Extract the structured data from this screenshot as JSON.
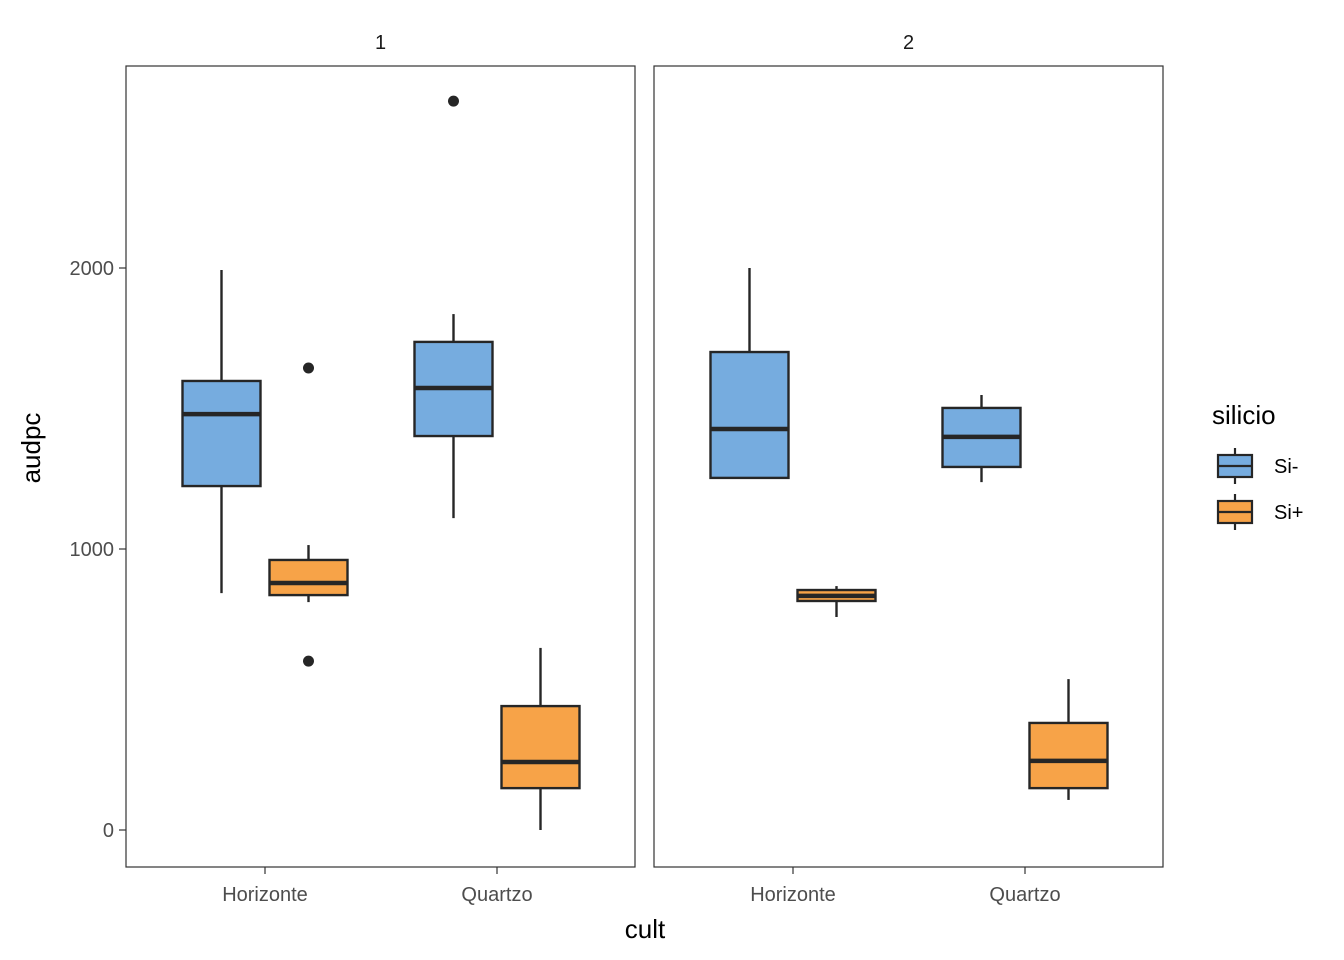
{
  "chart_data": {
    "type": "boxplot",
    "title": "",
    "xlabel": "cult",
    "ylabel": "audpc",
    "ylim": [
      -130,
      2700
    ],
    "yticks": [
      0,
      1000,
      2000
    ],
    "y_tick_labels": [
      "0",
      "1000",
      "2000"
    ],
    "grid": false,
    "facet_variable": "",
    "facets": [
      "1",
      "2"
    ],
    "categories": [
      "Horizonte",
      "Quartzo"
    ],
    "legend": {
      "title": "silicio",
      "placement": "right",
      "entries": [
        {
          "name": "Si-",
          "color": "#76ACDF"
        },
        {
          "name": "Si+",
          "color": "#F7A348"
        }
      ]
    },
    "series": [
      {
        "name": "Si-",
        "color": "#76ACDF",
        "boxes": [
          {
            "facet": "1",
            "category": "Horizonte",
            "whisker_low": 843,
            "q1": 1224,
            "median": 1480,
            "q3": 1598,
            "whisker_high": 1993,
            "outliers": []
          },
          {
            "facet": "1",
            "category": "Quartzo",
            "whisker_low": 1110,
            "q1": 1402,
            "median": 1573,
            "q3": 1737,
            "whisker_high": 1836,
            "outliers": [
              2594
            ]
          },
          {
            "facet": "2",
            "category": "Horizonte",
            "whisker_low": 1253,
            "q1": 1253,
            "median": 1427,
            "q3": 1701,
            "whisker_high": 2000,
            "outliers": []
          },
          {
            "facet": "2",
            "category": "Quartzo",
            "whisker_low": 1238,
            "q1": 1292,
            "median": 1399,
            "q3": 1502,
            "whisker_high": 1548,
            "outliers": []
          }
        ]
      },
      {
        "name": "Si+",
        "color": "#F7A348",
        "boxes": [
          {
            "facet": "1",
            "category": "Horizonte",
            "whisker_low": 811,
            "q1": 836,
            "median": 879,
            "q3": 961,
            "whisker_high": 1014,
            "outliers": [
              1644,
              601
            ]
          },
          {
            "facet": "1",
            "category": "Quartzo",
            "whisker_low": 0,
            "q1": 149,
            "median": 242,
            "q3": 441,
            "whisker_high": 648,
            "outliers": []
          },
          {
            "facet": "2",
            "category": "Horizonte",
            "whisker_low": 758,
            "q1": 815,
            "median": 833,
            "q3": 854,
            "whisker_high": 868,
            "outliers": []
          },
          {
            "facet": "2",
            "category": "Quartzo",
            "whisker_low": 107,
            "q1": 149,
            "median": 246,
            "q3": 381,
            "whisker_high": 537,
            "outliers": []
          }
        ]
      }
    ]
  }
}
